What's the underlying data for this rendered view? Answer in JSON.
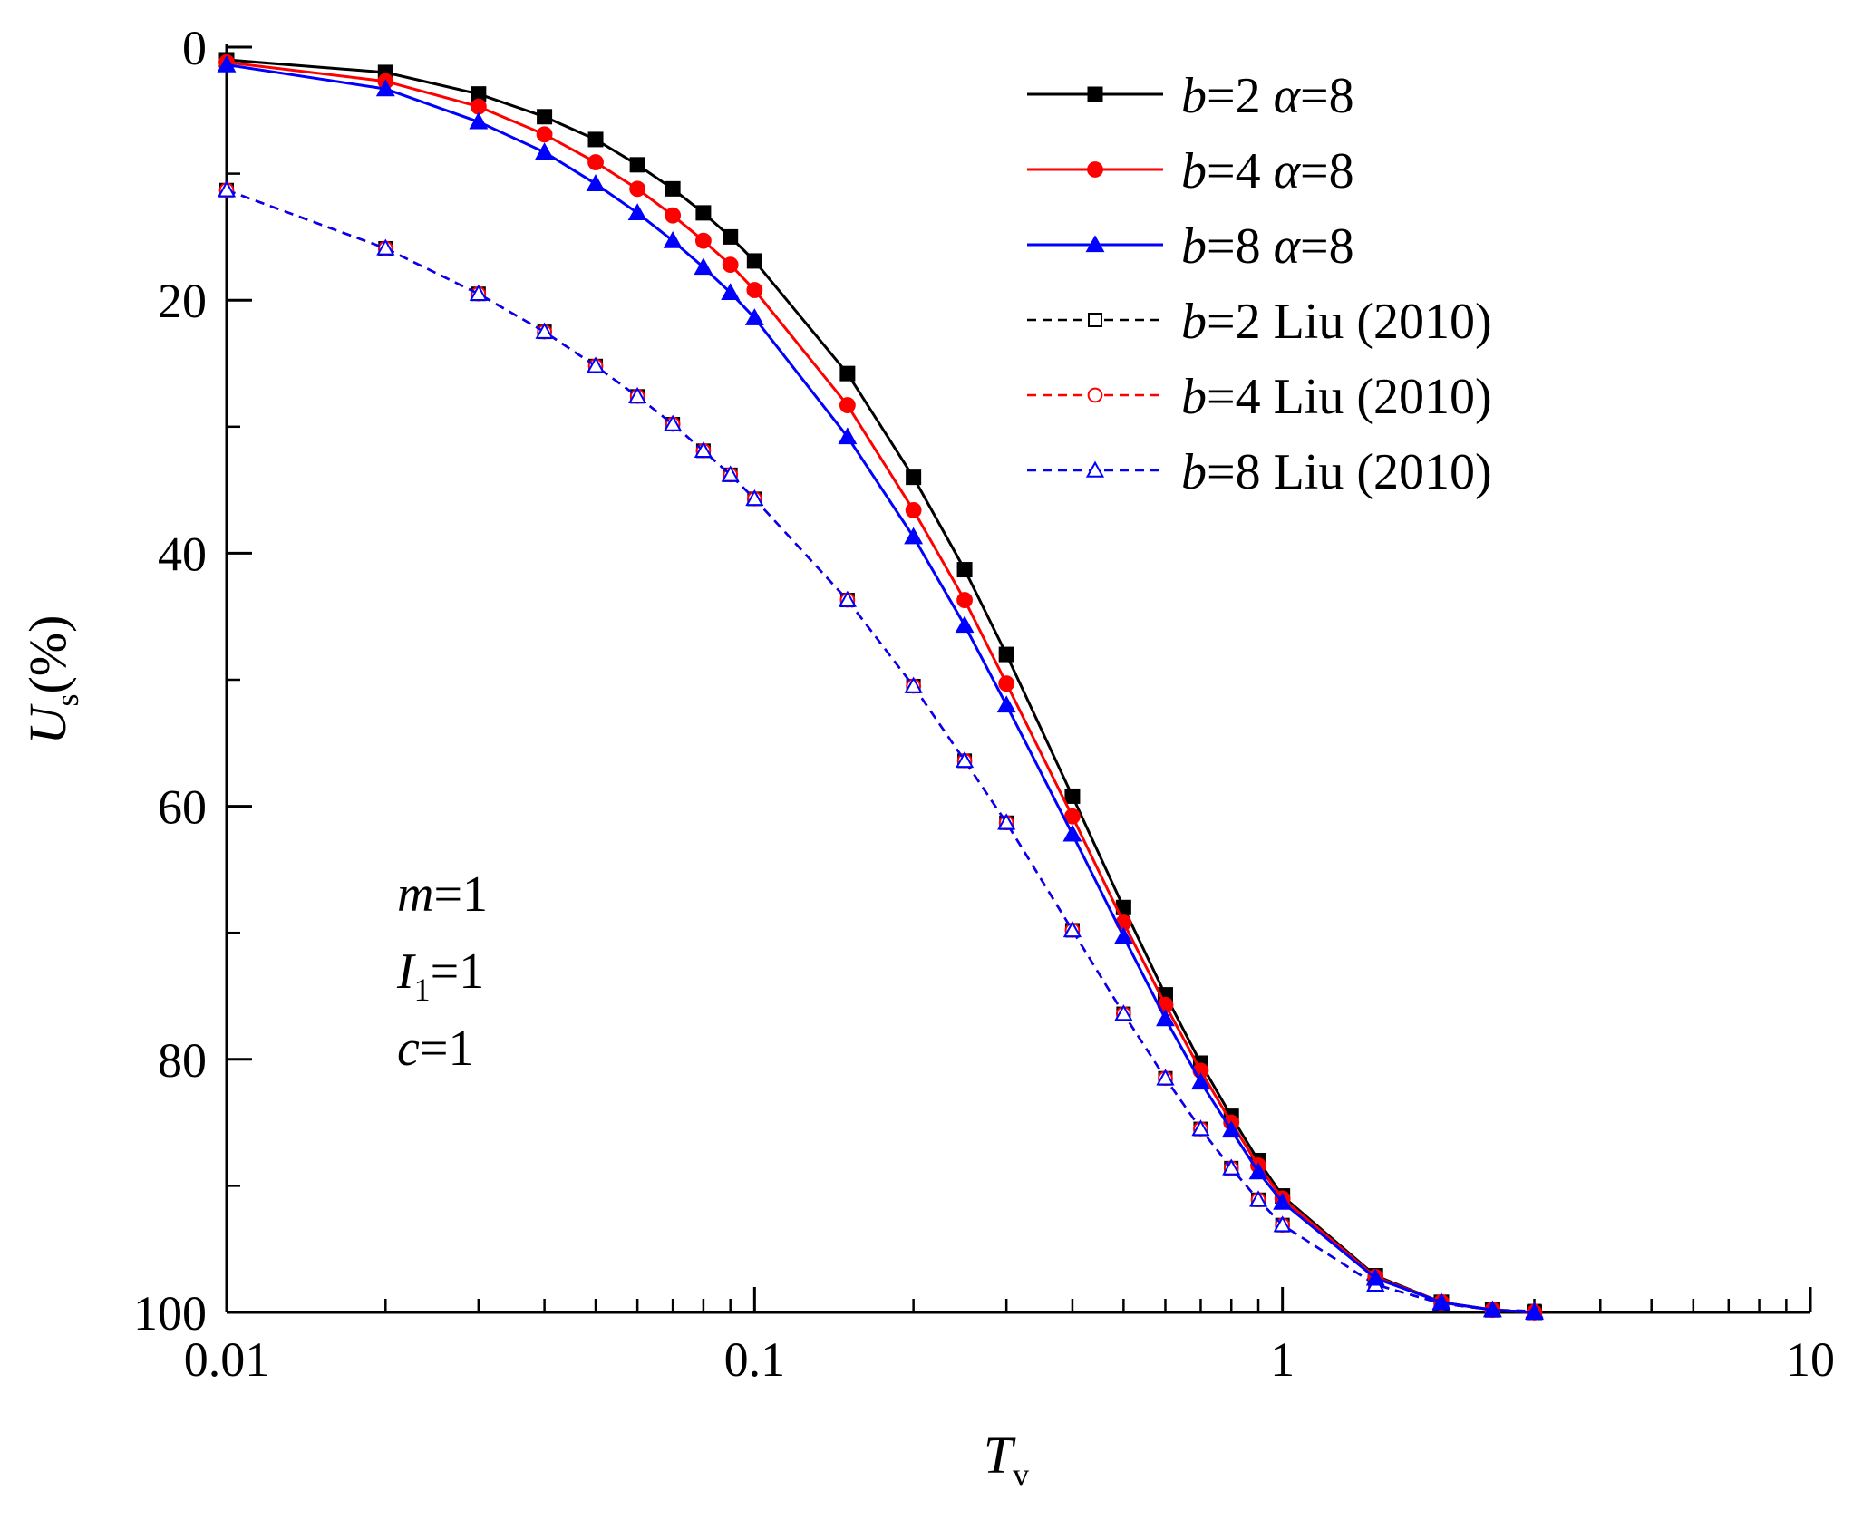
{
  "chart_data": {
    "type": "line",
    "xscale": "log",
    "xlim": [
      0.01,
      10
    ],
    "ylim": [
      0,
      100
    ],
    "y_inverted": true,
    "xticks": [
      {
        "value": 0.01,
        "label": "0.01"
      },
      {
        "value": 0.1,
        "label": "0.1"
      },
      {
        "value": 1,
        "label": "1"
      },
      {
        "value": 10,
        "label": "10"
      }
    ],
    "yticks": [
      {
        "value": 0,
        "label": "0"
      },
      {
        "value": 20,
        "label": "20"
      },
      {
        "value": 40,
        "label": "40"
      },
      {
        "value": 60,
        "label": "60"
      },
      {
        "value": 80,
        "label": "80"
      },
      {
        "value": 100,
        "label": "100"
      }
    ],
    "xlabel": {
      "main": "T",
      "sub": "v"
    },
    "ylabel": {
      "main": "U",
      "sub": "s",
      "suffix": "(%)"
    },
    "x": [
      0.01,
      0.02,
      0.03,
      0.04,
      0.05,
      0.06,
      0.07,
      0.08,
      0.09,
      0.1,
      0.15,
      0.2,
      0.25,
      0.3,
      0.4,
      0.5,
      0.6,
      0.7,
      0.8,
      0.9,
      1,
      1.5,
      2,
      2.5,
      3
    ],
    "series": [
      {
        "name": "b=2 α=8",
        "label_var": "b",
        "label_rest": "=2 ",
        "label_greek": "α",
        "label_tail": "=8",
        "color": "#000000",
        "marker": "square",
        "filled": true,
        "dashed": false,
        "values": [
          1.0,
          2.0,
          3.7,
          5.5,
          7.3,
          9.3,
          11.2,
          13.1,
          15.0,
          16.9,
          25.8,
          34.0,
          41.3,
          48.0,
          59.2,
          68.0,
          74.9,
          80.3,
          84.5,
          88.0,
          90.8,
          97.1,
          99.2,
          99.8,
          100.0
        ]
      },
      {
        "name": "b=4 α=8",
        "label_var": "b",
        "label_rest": "=4 ",
        "label_greek": "α",
        "label_tail": "=8",
        "color": "#ff0000",
        "marker": "circle",
        "filled": true,
        "dashed": false,
        "values": [
          1.2,
          2.7,
          4.7,
          6.9,
          9.1,
          11.2,
          13.3,
          15.3,
          17.2,
          19.2,
          28.3,
          36.6,
          43.7,
          50.3,
          60.8,
          69.2,
          75.7,
          80.9,
          85.0,
          88.4,
          91.0,
          97.2,
          99.2,
          99.8,
          100.0
        ]
      },
      {
        "name": "b=8 α=8",
        "label_var": "b",
        "label_rest": "=8 ",
        "label_greek": "α",
        "label_tail": "=8",
        "color": "#0000ff",
        "marker": "triangle",
        "filled": true,
        "dashed": false,
        "values": [
          1.4,
          3.3,
          5.9,
          8.3,
          10.8,
          13.1,
          15.3,
          17.4,
          19.4,
          21.4,
          30.8,
          38.7,
          45.7,
          52.0,
          62.2,
          70.3,
          76.8,
          81.8,
          85.6,
          88.9,
          91.3,
          97.3,
          99.2,
          99.8,
          100.0
        ]
      },
      {
        "name": "b=2 Liu (2010)",
        "label_var": "b",
        "label_rest": "=2 Liu (2010)",
        "color": "#000000",
        "marker": "square",
        "filled": false,
        "dashed": true,
        "values": [
          11.3,
          15.9,
          19.5,
          22.5,
          25.2,
          27.6,
          29.8,
          31.9,
          33.8,
          35.7,
          43.7,
          50.5,
          56.4,
          61.3,
          69.8,
          76.4,
          81.5,
          85.5,
          88.6,
          91.1,
          93.1,
          97.8,
          99.3,
          99.8,
          99.9
        ]
      },
      {
        "name": "b=4 Liu (2010)",
        "label_var": "b",
        "label_rest": "=4 Liu (2010)",
        "color": "#ff0000",
        "marker": "circle",
        "filled": false,
        "dashed": true,
        "values": [
          11.3,
          15.9,
          19.5,
          22.5,
          25.2,
          27.6,
          29.8,
          31.9,
          33.8,
          35.7,
          43.7,
          50.5,
          56.4,
          61.3,
          69.8,
          76.4,
          81.5,
          85.5,
          88.6,
          91.1,
          93.1,
          97.8,
          99.3,
          99.8,
          99.9
        ]
      },
      {
        "name": "b=8 Liu (2010)",
        "label_var": "b",
        "label_rest": "=8 Liu (2010)",
        "color": "#0000ff",
        "marker": "triangle",
        "filled": false,
        "dashed": true,
        "values": [
          11.3,
          15.9,
          19.5,
          22.5,
          25.2,
          27.6,
          29.8,
          31.9,
          33.8,
          35.7,
          43.7,
          50.5,
          56.4,
          61.3,
          69.8,
          76.4,
          81.5,
          85.5,
          88.6,
          91.1,
          93.1,
          97.8,
          99.3,
          99.8,
          99.9
        ]
      }
    ],
    "legend_position": "top-right",
    "annotations": [
      {
        "var": "m",
        "rest": "=1"
      },
      {
        "var": "I",
        "sub": "1",
        "rest": "=1"
      },
      {
        "var": "c",
        "rest": "=1"
      }
    ]
  }
}
